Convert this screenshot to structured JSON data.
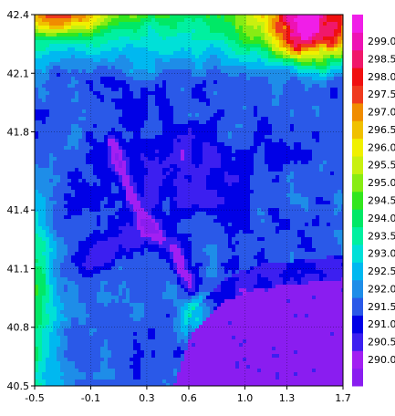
{
  "chart_data": {
    "type": "heatmap",
    "title": "",
    "xlabel": "",
    "ylabel": "",
    "xlim": [
      -0.5,
      1.7
    ],
    "ylim": [
      40.5,
      42.4
    ],
    "grid": true,
    "x_ticks": [
      "-0.5",
      "-0.1",
      "0.3",
      "0.6",
      "1.0",
      "1.3",
      "1.7"
    ],
    "x_tick_values": [
      -0.5,
      -0.1,
      0.3,
      0.6,
      1.0,
      1.3,
      1.7
    ],
    "y_ticks": [
      "40.5",
      "40.8",
      "41.1",
      "41.4",
      "41.8",
      "42.1",
      "42.4"
    ],
    "y_tick_values": [
      40.5,
      40.8,
      41.1,
      41.4,
      41.8,
      42.1,
      42.4
    ],
    "colorbar": {
      "levels": [
        {
          "label": "",
          "color": "#8a1df0"
        },
        {
          "label": "290.0",
          "color": "#a21ff2"
        },
        {
          "label": "290.5",
          "color": "#3c1ff0"
        },
        {
          "label": "291.0",
          "color": "#0000e6"
        },
        {
          "label": "291.5",
          "color": "#2a59e8"
        },
        {
          "label": "292.0",
          "color": "#1e8de8"
        },
        {
          "label": "292.5",
          "color": "#00b8f0"
        },
        {
          "label": "293.0",
          "color": "#00e0d8"
        },
        {
          "label": "293.5",
          "color": "#00f0a0"
        },
        {
          "label": "294.0",
          "color": "#00e866"
        },
        {
          "label": "294.5",
          "color": "#32e61e"
        },
        {
          "label": "295.0",
          "color": "#88ec14"
        },
        {
          "label": "295.5",
          "color": "#c8f010"
        },
        {
          "label": "296.0",
          "color": "#f0f000"
        },
        {
          "label": "296.5",
          "color": "#f0c000"
        },
        {
          "label": "297.0",
          "color": "#f08c00"
        },
        {
          "label": "297.5",
          "color": "#ef3a1e"
        },
        {
          "label": "298.0",
          "color": "#f01010"
        },
        {
          "label": "298.5",
          "color": "#f0186a"
        },
        {
          "label": "299.0",
          "color": "#ee12b4"
        },
        {
          "label": "",
          "color": "#f01ee8"
        }
      ]
    },
    "field": {
      "base_value": 291.8,
      "features": [
        {
          "kind": "coast_sea",
          "value": 290.0,
          "note": "sea region south-east"
        },
        {
          "kind": "valley_low",
          "value": 291.0,
          "path": [
            [
              0.05,
              41.75
            ],
            [
              0.12,
              41.6
            ],
            [
              0.2,
              41.45
            ],
            [
              0.28,
              41.35
            ],
            [
              0.4,
              41.25
            ],
            [
              0.5,
              41.2
            ],
            [
              0.55,
              41.1
            ],
            [
              0.62,
              41.0
            ]
          ]
        },
        {
          "kind": "west_low",
          "value": 290.9,
          "path": [
            [
              -0.1,
              41.15
            ],
            [
              0.05,
              41.2
            ],
            [
              0.2,
              41.28
            ],
            [
              0.3,
              41.3
            ]
          ]
        },
        {
          "kind": "inland_low",
          "value": 291.1,
          "center": [
            0.55,
            41.6
          ]
        },
        {
          "kind": "north_high",
          "value": 298.5,
          "center": [
            1.45,
            42.3
          ]
        },
        {
          "kind": "nw_high",
          "value": 295.5,
          "center": [
            -0.35,
            42.35
          ]
        },
        {
          "kind": "west_edge",
          "value": 294.0,
          "center": [
            -0.5,
            40.9
          ]
        },
        {
          "kind": "south_ridge",
          "value": 293.5,
          "center": [
            0.65,
            40.85
          ]
        }
      ]
    }
  }
}
